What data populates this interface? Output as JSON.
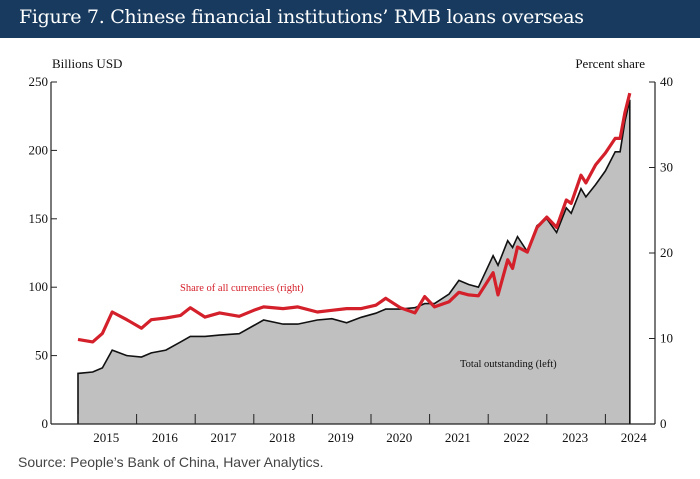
{
  "header": {
    "title": "Figure 7. Chinese financial institutions’ RMB loans overseas"
  },
  "source": "Source: People’s Bank of China, Haver Analytics.",
  "colors": {
    "header_bg": "#173a5e",
    "share_line": "#d4202a",
    "total_fill": "#c0c0c0",
    "total_line": "#111111"
  },
  "chart_data": {
    "type": "area+line",
    "left_axis": {
      "label": "Billions USD",
      "range": [
        0,
        250
      ],
      "ticks": [
        0,
        50,
        100,
        150,
        200,
        250
      ]
    },
    "right_axis": {
      "label": "Percent share",
      "range": [
        0,
        40
      ],
      "ticks": [
        0,
        10,
        20,
        30,
        40
      ]
    },
    "x_axis": {
      "ticks": [
        "2015",
        "2016",
        "2017",
        "2018",
        "2019",
        "2020",
        "2021",
        "2022",
        "2023",
        "2024"
      ]
    },
    "grid": false,
    "dates": [
      "2015-01",
      "2015-04",
      "2015-06",
      "2015-08",
      "2015-11",
      "2016-02",
      "2016-04",
      "2016-07",
      "2016-10",
      "2016-12",
      "2017-03",
      "2017-06",
      "2017-10",
      "2018-01",
      "2018-03",
      "2018-07",
      "2018-10",
      "2019-02",
      "2019-05",
      "2019-08",
      "2019-11",
      "2020-02",
      "2020-04",
      "2020-07",
      "2020-10",
      "2020-12",
      "2021-02",
      "2021-05",
      "2021-07",
      "2021-09",
      "2021-11",
      "2022-02",
      "2022-03",
      "2022-05",
      "2022-06",
      "2022-07",
      "2022-09",
      "2022-11",
      "2023-01",
      "2023-03",
      "2023-05",
      "2023-06",
      "2023-08",
      "2023-09",
      "2023-11",
      "2024-01",
      "2024-03",
      "2024-04",
      "2024-05",
      "2024-06"
    ],
    "series": [
      {
        "name": "Total outstanding (left)",
        "axis": "left",
        "style": "area",
        "values": [
          37,
          38,
          41,
          54,
          50,
          49,
          52,
          54,
          60,
          64,
          64,
          65,
          66,
          72,
          76,
          73,
          73,
          76,
          77,
          74,
          78,
          81,
          84,
          84,
          85,
          88,
          88,
          95,
          105,
          102,
          100,
          123,
          116,
          134,
          129,
          137,
          126,
          145,
          150,
          140,
          158,
          154,
          172,
          166,
          175,
          185,
          199,
          199,
          221,
          237
        ]
      },
      {
        "name": "Share of all currencies (right)",
        "axis": "right",
        "style": "line",
        "values": [
          9.9,
          9.6,
          10.6,
          13.1,
          12.2,
          11.2,
          12.2,
          12.4,
          12.7,
          13.6,
          12.5,
          13.0,
          12.6,
          13.3,
          13.7,
          13.5,
          13.7,
          13.1,
          13.3,
          13.5,
          13.5,
          13.9,
          14.7,
          13.6,
          13.0,
          14.9,
          13.7,
          14.3,
          15.4,
          15.1,
          15.0,
          17.7,
          15.1,
          19.2,
          18.2,
          20.7,
          20.1,
          23.0,
          24.2,
          23.0,
          26.2,
          25.8,
          29.1,
          28.2,
          30.3,
          31.7,
          33.4,
          33.4,
          36.4,
          38.7
        ]
      }
    ]
  }
}
